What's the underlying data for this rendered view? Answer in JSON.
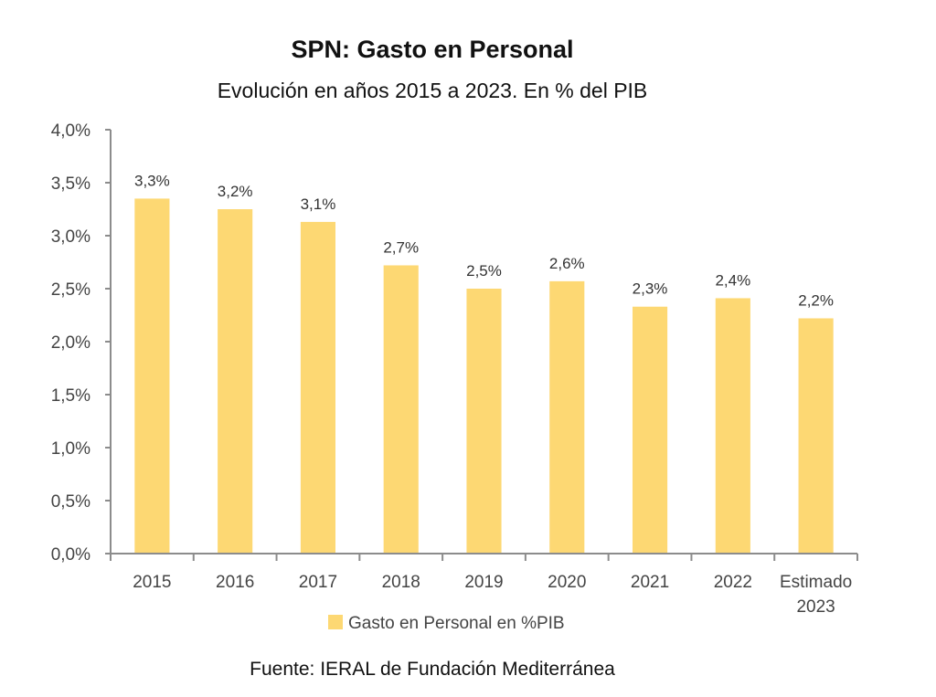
{
  "chart_data": {
    "type": "bar",
    "title": "SPN: Gasto en Personal",
    "subtitle": "Evolución en años 2015 a 2023. En % del PIB",
    "xlabel": "",
    "ylabel": "",
    "categories": [
      [
        "2015"
      ],
      [
        "2016"
      ],
      [
        "2017"
      ],
      [
        "2018"
      ],
      [
        "2019"
      ],
      [
        "2020"
      ],
      [
        "2021"
      ],
      [
        "2022"
      ],
      [
        "Estimado",
        "2023"
      ]
    ],
    "series": [
      {
        "name": "Gasto en Personal en %PIB",
        "color": "#fdd873",
        "values": [
          3.35,
          3.25,
          3.13,
          2.72,
          2.5,
          2.57,
          2.33,
          2.41,
          2.22
        ],
        "data_labels": [
          "3,3%",
          "3,2%",
          "3,1%",
          "2,7%",
          "2,5%",
          "2,6%",
          "2,3%",
          "2,4%",
          "2,2%"
        ]
      }
    ],
    "ylim": [
      0,
      4.0
    ],
    "y_ticks": [
      0,
      0.5,
      1.0,
      1.5,
      2.0,
      2.5,
      3.0,
      3.5,
      4.0
    ],
    "y_tick_labels": [
      "0,0%",
      "0,5%",
      "1,0%",
      "1,5%",
      "2,0%",
      "2,5%",
      "3,0%",
      "3,5%",
      "4,0%"
    ],
    "grid": false,
    "legend_position": "bottom",
    "source": "Fuente: IERAL de Fundación Mediterránea"
  }
}
